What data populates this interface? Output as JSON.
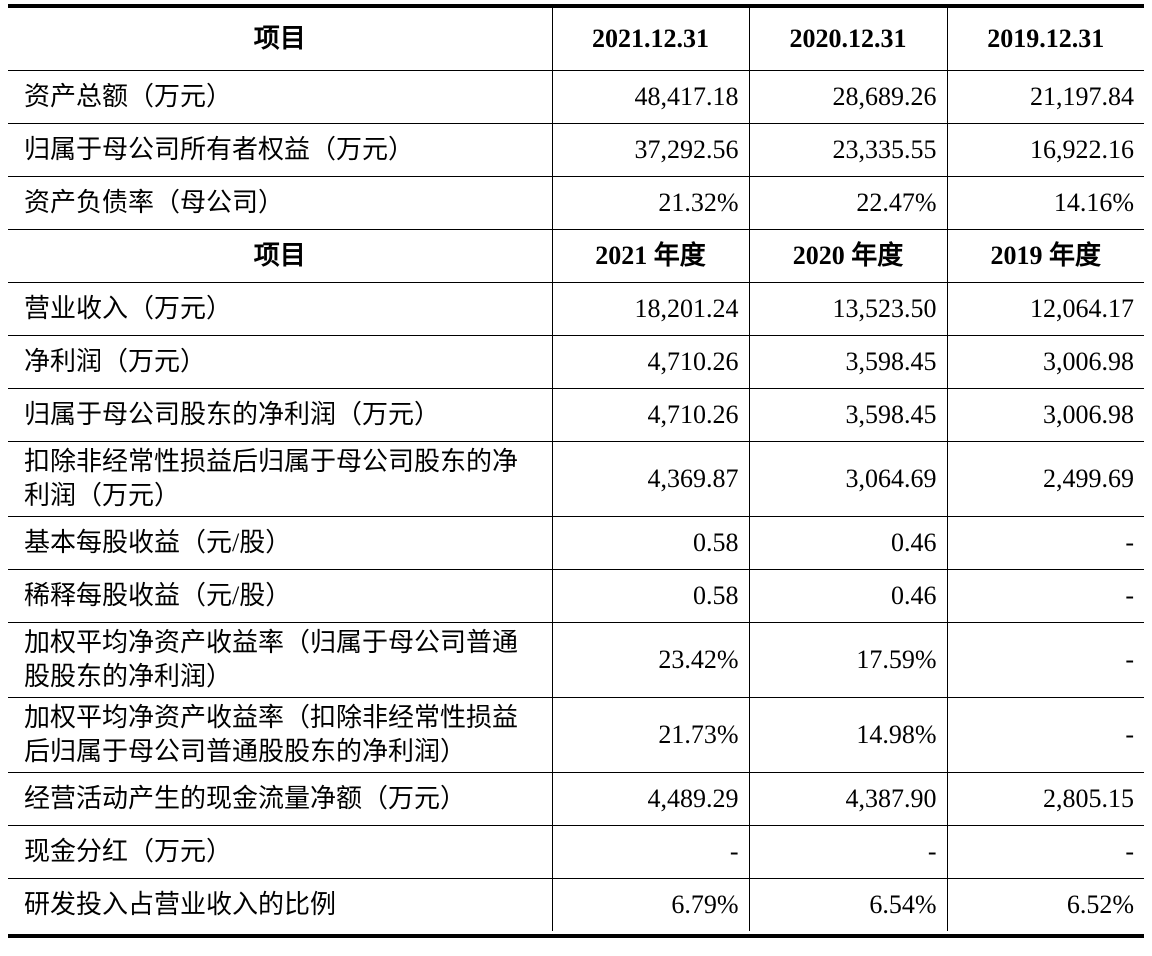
{
  "balance_header": [
    "项目",
    "2021.12.31",
    "2020.12.31",
    "2019.12.31"
  ],
  "balance_rows": [
    [
      "资产总额（万元）",
      "48,417.18",
      "28,689.26",
      "21,197.84"
    ],
    [
      "归属于母公司所有者权益（万元）",
      "37,292.56",
      "23,335.55",
      "16,922.16"
    ],
    [
      "资产负债率（母公司）",
      "21.32%",
      "22.47%",
      "14.16%"
    ]
  ],
  "income_header": [
    "项目",
    "2021 年度",
    "2020 年度",
    "2019 年度"
  ],
  "income_rows": [
    [
      "营业收入（万元）",
      "18,201.24",
      "13,523.50",
      "12,064.17"
    ],
    [
      "净利润（万元）",
      "4,710.26",
      "3,598.45",
      "3,006.98"
    ],
    [
      "归属于母公司股东的净利润（万元）",
      "4,710.26",
      "3,598.45",
      "3,006.98"
    ],
    [
      "扣除非经常性损益后归属于母公司股东的净利润（万元）",
      "4,369.87",
      "3,064.69",
      "2,499.69"
    ],
    [
      "基本每股收益（元/股）",
      "0.58",
      "0.46",
      "-"
    ],
    [
      "稀释每股收益（元/股）",
      "0.58",
      "0.46",
      "-"
    ],
    [
      "加权平均净资产收益率（归属于母公司普通股股东的净利润）",
      "23.42%",
      "17.59%",
      "-"
    ],
    [
      "加权平均净资产收益率（扣除非经常性损益后归属于母公司普通股股东的净利润）",
      "21.73%",
      "14.98%",
      "-"
    ],
    [
      "经营活动产生的现金流量净额（万元）",
      "4,489.29",
      "4,387.90",
      "2,805.15"
    ],
    [
      "现金分红（万元）",
      "-",
      "-",
      "-"
    ],
    [
      "研发投入占营业收入的比例",
      "6.79%",
      "6.54%",
      "6.52%"
    ]
  ]
}
